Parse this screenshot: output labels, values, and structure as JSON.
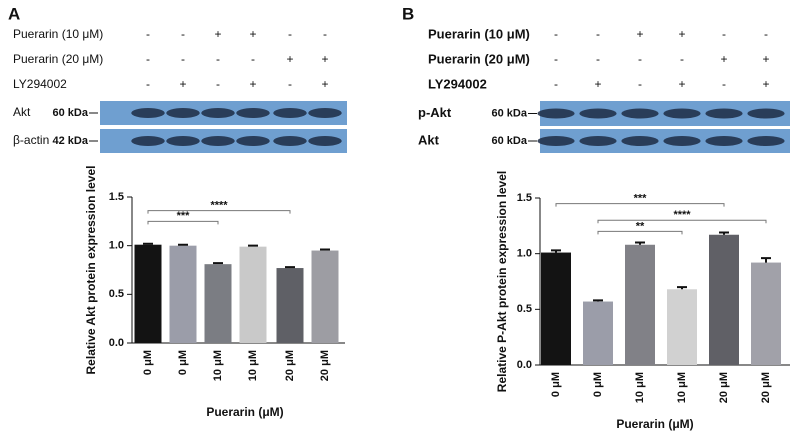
{
  "chart_data": [
    {
      "type": "bar",
      "panel_label": "A",
      "treatments": [
        {
          "label": "Puerarin (10 μM)",
          "marks": [
            "-",
            "-",
            "+",
            "+",
            "-",
            "-"
          ]
        },
        {
          "label": "Puerarin (20 μM)",
          "marks": [
            "-",
            "-",
            "-",
            "-",
            "+",
            "+"
          ]
        },
        {
          "label": "LY294002",
          "marks": [
            "-",
            "+",
            "-",
            "+",
            "-",
            "+"
          ]
        }
      ],
      "blots": [
        {
          "label": "Akt",
          "size": "60 kDa"
        },
        {
          "label": "β-actin",
          "size": "42 kDa"
        }
      ],
      "y_label": "Relative Akt protein expression level",
      "x_label": "Puerarin (μM)",
      "categories": [
        "0 μM",
        "0 μM",
        "10 μM",
        "10 μM",
        "20 μM",
        "20 μM"
      ],
      "series": [
        {
          "values": [
            1.01,
            1.0,
            0.81,
            0.99,
            0.77,
            0.95
          ],
          "errors": [
            0.01,
            0.01,
            0.01,
            0.01,
            0.01,
            0.01
          ],
          "colors": [
            "#131313",
            "#9b9da9",
            "#7b7d83",
            "#c9c9c9",
            "#5f6066",
            "#9d9da3"
          ]
        }
      ],
      "ylim": [
        0,
        1.5
      ],
      "yticks": [
        {
          "value": 0,
          "label": "0.0"
        },
        {
          "value": 0.5,
          "label": "0.5"
        },
        {
          "value": 1,
          "label": "1.0"
        },
        {
          "value": 1.5,
          "label": "1.5"
        }
      ],
      "annotations": [
        {
          "label": "***",
          "from": 0,
          "to": 2,
          "y": 1.25
        },
        {
          "label": "****",
          "from": 0,
          "to": 4,
          "y": 1.36
        }
      ]
    },
    {
      "type": "bar",
      "panel_label": "B",
      "treatments": [
        {
          "label": "Puerarin (10 μM)",
          "marks": [
            "-",
            "-",
            "+",
            "+",
            "-",
            "-"
          ]
        },
        {
          "label": "Puerarin (20 μM)",
          "marks": [
            "-",
            "-",
            "-",
            "-",
            "+",
            "+"
          ]
        },
        {
          "label": "LY294002",
          "marks": [
            "-",
            "+",
            "-",
            "+",
            "-",
            "+"
          ]
        }
      ],
      "blots": [
        {
          "label": "p-Akt",
          "size": "60 kDa"
        },
        {
          "label": "Akt",
          "size": "60 kDa"
        }
      ],
      "y_label": "Relative P-Akt protein expression level",
      "x_label": "Puerarin (μM)",
      "categories": [
        "0 μM",
        "0 μM",
        "10 μM",
        "10 μM",
        "20 μM",
        "20 μM"
      ],
      "series": [
        {
          "values": [
            1.01,
            0.57,
            1.08,
            0.68,
            1.17,
            0.92
          ],
          "errors": [
            0.02,
            0.01,
            0.02,
            0.02,
            0.02,
            0.04
          ],
          "colors": [
            "#131313",
            "#9b9da9",
            "#818187",
            "#d1d1d1",
            "#606066",
            "#a1a1a9"
          ]
        }
      ],
      "ylim": [
        0,
        1.5
      ],
      "yticks": [
        {
          "value": 0,
          "label": "0.0"
        },
        {
          "value": 0.5,
          "label": "0.5"
        },
        {
          "value": 1,
          "label": "1.0"
        },
        {
          "value": 1.5,
          "label": "1.5"
        }
      ],
      "annotations": [
        {
          "label": "***",
          "from": 0,
          "to": 4,
          "y": 1.45
        },
        {
          "label": "****",
          "from": 1,
          "to": 5,
          "y": 1.3
        },
        {
          "label": "**",
          "from": 1,
          "to": 3,
          "y": 1.2
        }
      ]
    }
  ]
}
